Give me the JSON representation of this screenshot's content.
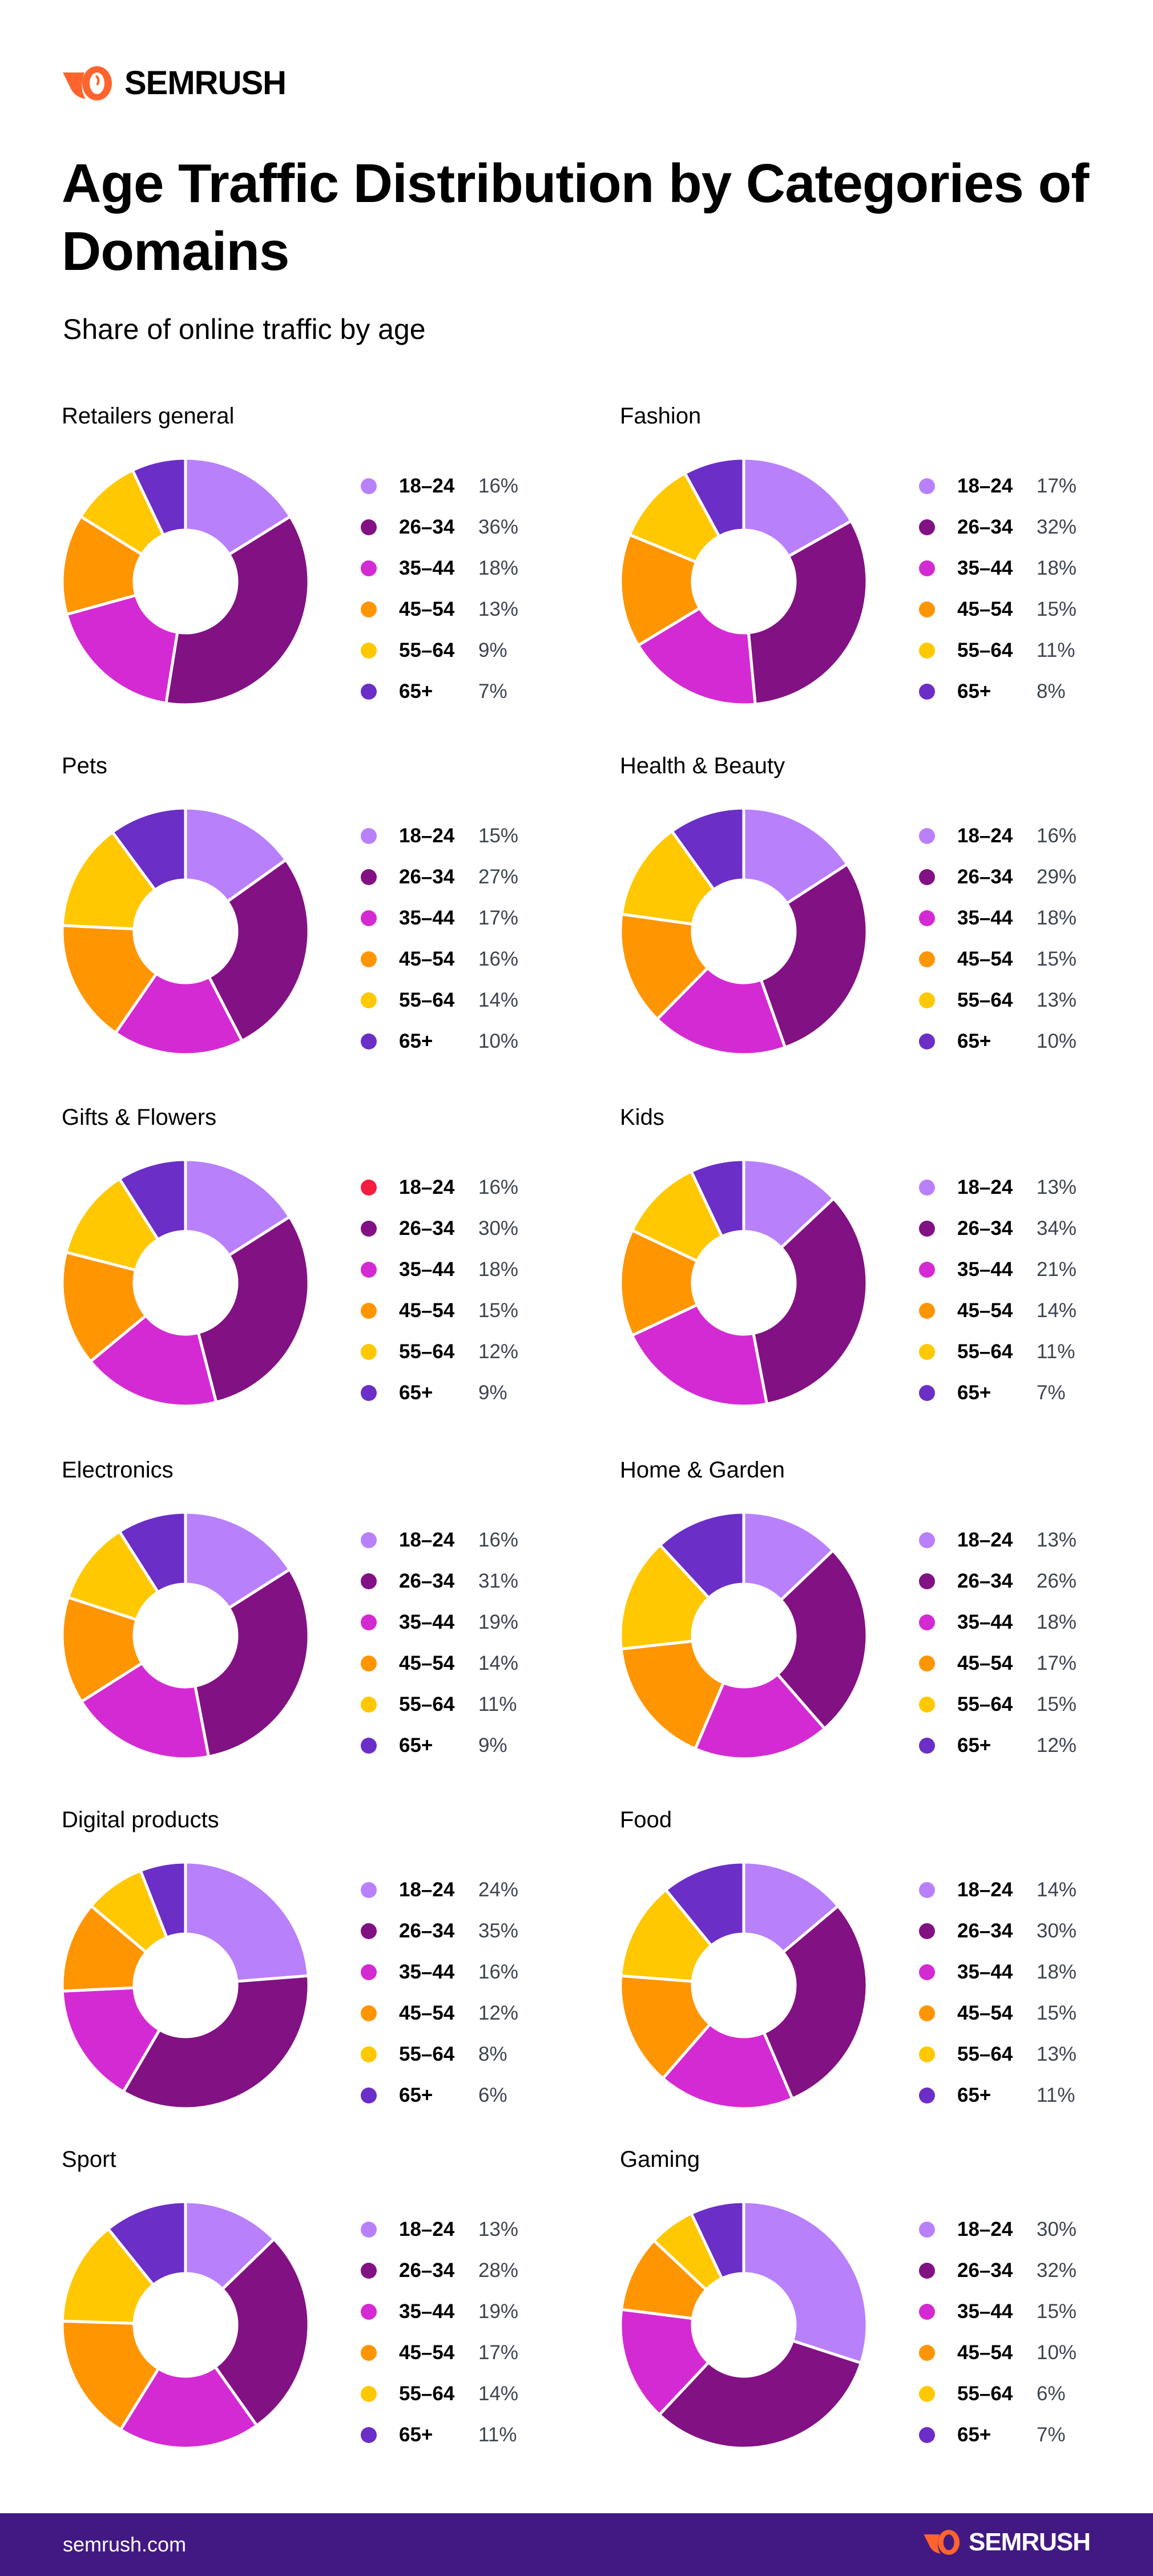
{
  "brand": {
    "name": "SEMRUSH",
    "accent": "#ff642d"
  },
  "header": {
    "title": "Age Traffic Distribution by Categories of Domains",
    "subtitle": "Share of online traffic by age"
  },
  "footer": {
    "url": "semrush.com",
    "background": "#421983"
  },
  "colors": {
    "18–24": "#b980fc",
    "26–34": "#821183",
    "35–44": "#d42ad3",
    "45–54": "#ff9500",
    "55–64": "#ffc800",
    "65+": "#6b2ec7"
  },
  "chart_data": [
    {
      "type": "pie",
      "title": "Retailers general",
      "categories": [
        "18–24",
        "26–34",
        "35–44",
        "45–54",
        "55–64",
        "65+"
      ],
      "values": [
        16,
        36,
        18,
        13,
        9,
        7
      ],
      "labels": [
        "16%",
        "36%",
        "18%",
        "13%",
        "9%",
        "7%"
      ]
    },
    {
      "type": "pie",
      "title": "Fashion",
      "categories": [
        "18–24",
        "26–34",
        "35–44",
        "45–54",
        "55–64",
        "65+"
      ],
      "values": [
        17,
        32,
        18,
        15,
        11,
        8
      ],
      "labels": [
        "17%",
        "32%",
        "18%",
        "15%",
        "11%",
        "8%"
      ]
    },
    {
      "type": "pie",
      "title": "Pets",
      "categories": [
        "18–24",
        "26–34",
        "35–44",
        "45–54",
        "55–64",
        "65+"
      ],
      "values": [
        15,
        27,
        17,
        16,
        14,
        10
      ],
      "labels": [
        "15%",
        "27%",
        "17%",
        "16%",
        "14%",
        "10%"
      ]
    },
    {
      "type": "pie",
      "title": "Health & Beauty",
      "categories": [
        "18–24",
        "26–34",
        "35–44",
        "45–54",
        "55–64",
        "65+"
      ],
      "values": [
        16,
        29,
        18,
        15,
        13,
        10
      ],
      "labels": [
        "16%",
        "29%",
        "18%",
        "15%",
        "13%",
        "10%"
      ]
    },
    {
      "type": "pie",
      "title": "Gifts & Flowers",
      "categories": [
        "18–24",
        "26–34",
        "35–44",
        "45–54",
        "55–64",
        "65+"
      ],
      "values": [
        16,
        30,
        18,
        15,
        12,
        9
      ],
      "labels": [
        "16%",
        "30%",
        "18%",
        "15%",
        "12%",
        "9%"
      ],
      "legend_color_override": {
        "18–24": "#f41d3f"
      }
    },
    {
      "type": "pie",
      "title": "Kids",
      "categories": [
        "18–24",
        "26–34",
        "35–44",
        "45–54",
        "55–64",
        "65+"
      ],
      "values": [
        13,
        34,
        21,
        14,
        11,
        7
      ],
      "labels": [
        "13%",
        "34%",
        "21%",
        "14%",
        "11%",
        "7%"
      ]
    },
    {
      "type": "pie",
      "title": "Electronics",
      "categories": [
        "18–24",
        "26–34",
        "35–44",
        "45–54",
        "55–64",
        "65+"
      ],
      "values": [
        16,
        31,
        19,
        14,
        11,
        9
      ],
      "labels": [
        "16%",
        "31%",
        "19%",
        "14%",
        "11%",
        "9%"
      ]
    },
    {
      "type": "pie",
      "title": "Home & Garden",
      "categories": [
        "18–24",
        "26–34",
        "35–44",
        "45–54",
        "55–64",
        "65+"
      ],
      "values": [
        13,
        26,
        18,
        17,
        15,
        12
      ],
      "labels": [
        "13%",
        "26%",
        "18%",
        "17%",
        "15%",
        "12%"
      ]
    },
    {
      "type": "pie",
      "title": "Digital products",
      "categories": [
        "18–24",
        "26–34",
        "35–44",
        "45–54",
        "55–64",
        "65+"
      ],
      "values": [
        24,
        35,
        16,
        12,
        8,
        6
      ],
      "labels": [
        "24%",
        "35%",
        "16%",
        "12%",
        "8%",
        "6%"
      ]
    },
    {
      "type": "pie",
      "title": "Food",
      "categories": [
        "18–24",
        "26–34",
        "35–44",
        "45–54",
        "55–64",
        "65+"
      ],
      "values": [
        14,
        30,
        18,
        15,
        13,
        11
      ],
      "labels": [
        "14%",
        "30%",
        "18%",
        "15%",
        "13%",
        "11%"
      ]
    },
    {
      "type": "pie",
      "title": "Sport",
      "categories": [
        "18–24",
        "26–34",
        "35–44",
        "45–54",
        "55–64",
        "65+"
      ],
      "values": [
        13,
        28,
        19,
        17,
        14,
        11
      ],
      "labels": [
        "13%",
        "28%",
        "19%",
        "17%",
        "14%",
        "11%"
      ]
    },
    {
      "type": "pie",
      "title": "Gaming",
      "categories": [
        "18–24",
        "26–34",
        "35–44",
        "45–54",
        "55–64",
        "65+"
      ],
      "values": [
        30,
        32,
        15,
        10,
        6,
        7
      ],
      "labels": [
        "30%",
        "32%",
        "15%",
        "10%",
        "6%",
        "7%"
      ]
    }
  ]
}
